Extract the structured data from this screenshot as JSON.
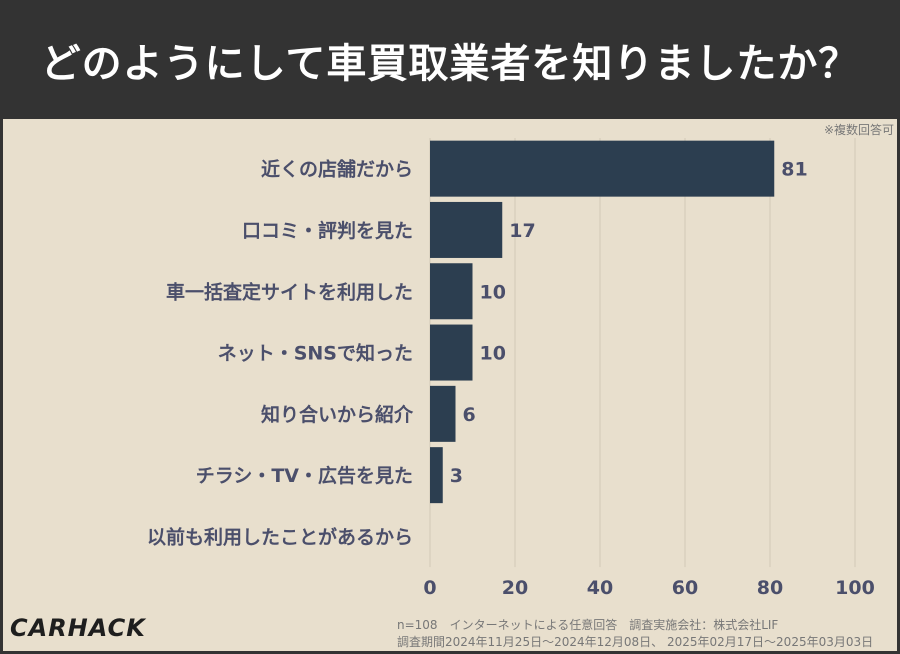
{
  "title": "どのようにして車買取業者を知りましたか？",
  "note": "※複数回答可",
  "footer": {
    "line1": "n=108　インターネットによる任意回答　調査実施会社：株式会社LIF",
    "line2": "調査期間2024年11月25日〜2024年12月08日、 2025年02月17日〜2025年03月03日"
  },
  "logo": "CARHACK",
  "colors": {
    "bar": "#2c3e50",
    "label": "#4b4f6b",
    "background": "#e8dfcd",
    "header": "#333333"
  },
  "chart_data": {
    "type": "bar",
    "orientation": "horizontal",
    "categories": [
      "近くの店舗だから",
      "口コミ・評判を見た",
      "車一括査定サイトを利用した",
      "ネット・SNSで知った",
      "知り合いから紹介",
      "チラシ・TV・広告を見た",
      "以前も利用したことがあるから"
    ],
    "values": [
      81,
      17,
      10,
      10,
      6,
      3,
      0
    ],
    "xlim": [
      0,
      100
    ],
    "xticks": [
      0,
      20,
      40,
      60,
      80,
      100
    ],
    "grid": true,
    "title": "どのようにして車買取業者を知りましたか？"
  }
}
